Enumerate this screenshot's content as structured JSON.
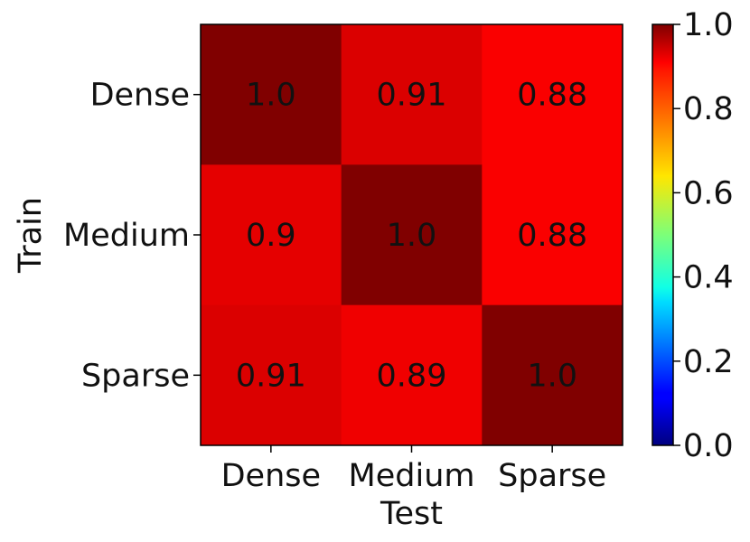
{
  "chart_data": {
    "type": "heatmap",
    "xlabel": "Test",
    "ylabel": "Train",
    "x_categories": [
      "Dense",
      "Medium",
      "Sparse"
    ],
    "y_categories": [
      "Dense",
      "Medium",
      "Sparse"
    ],
    "values": [
      [
        1.0,
        0.91,
        0.88
      ],
      [
        0.9,
        1.0,
        0.88
      ],
      [
        0.91,
        0.89,
        1.0
      ]
    ],
    "value_labels": [
      [
        "1.0",
        "0.91",
        "0.88"
      ],
      [
        "0.9",
        "1.0",
        "0.88"
      ],
      [
        "0.91",
        "0.89",
        "1.0"
      ]
    ],
    "colormap": "jet",
    "colorbar": {
      "range": [
        0.0,
        1.0
      ],
      "ticks": [
        "0.0",
        "0.2",
        "0.4",
        "0.6",
        "0.8",
        "1.0"
      ]
    },
    "grid": false
  }
}
